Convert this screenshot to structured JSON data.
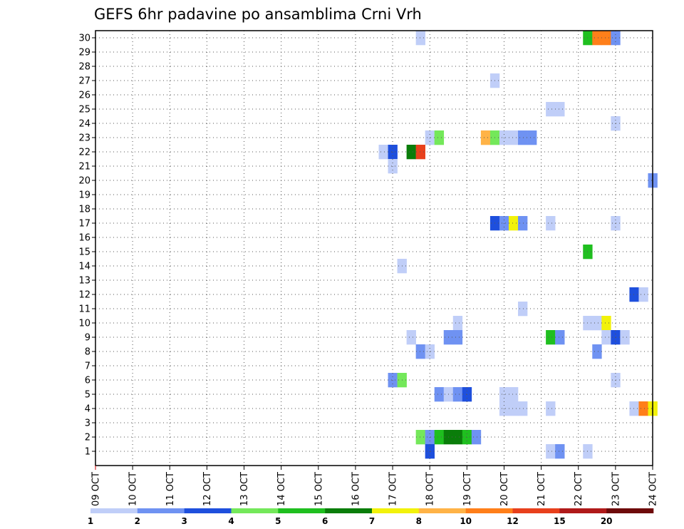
{
  "chart_data": {
    "type": "heatmap",
    "title": "GEFS 6hr padavine po ansamblima Crni Vrh",
    "x_tick_labels": [
      "09 OCT",
      "10 OCT",
      "11 OCT",
      "12 OCT",
      "13 OCT",
      "14 OCT",
      "15 OCT",
      "16 OCT",
      "17 OCT",
      "18 OCT",
      "19 OCT",
      "20 OCT",
      "21 OCT",
      "22 OCT",
      "23 OCT",
      "24 OCT"
    ],
    "y_tick_labels": [
      "1",
      "2",
      "3",
      "4",
      "5",
      "6",
      "7",
      "8",
      "9",
      "10",
      "11",
      "12",
      "13",
      "14",
      "15",
      "16",
      "17",
      "18",
      "19",
      "20",
      "21",
      "22",
      "23",
      "24",
      "25",
      "26",
      "27",
      "28",
      "29",
      "30"
    ],
    "x_range": [
      "09 OCT",
      "24 OCT"
    ],
    "y_range": [
      1,
      30
    ],
    "grid": true,
    "time_step": "6hr",
    "levels": [
      1,
      2,
      3,
      4,
      5,
      6,
      7,
      8,
      10,
      12,
      15,
      20
    ],
    "level_labels": [
      "1",
      "2",
      "3",
      "4",
      "5",
      "6",
      "7",
      "8",
      "10",
      "12",
      "15",
      "20"
    ],
    "colors": [
      "#c0cef8",
      "#6f92f2",
      "#1e4fdd",
      "#74e85a",
      "#1fbf1f",
      "#0a7d0a",
      "#f2f20a",
      "#ffb347",
      "#ff7f1a",
      "#e8401c",
      "#b01a1a",
      "#6e0a0a"
    ],
    "cells": [
      {
        "member": 30,
        "step": 35,
        "level": 0
      },
      {
        "member": 30,
        "step": 53,
        "level": 4
      },
      {
        "member": 30,
        "step": 54,
        "level": 8
      },
      {
        "member": 30,
        "step": 55,
        "level": 8
      },
      {
        "member": 30,
        "step": 56,
        "level": 1
      },
      {
        "member": 27,
        "step": 43,
        "level": 0
      },
      {
        "member": 25,
        "step": 49,
        "level": 0
      },
      {
        "member": 25,
        "step": 50,
        "level": 0
      },
      {
        "member": 24,
        "step": 56,
        "level": 0
      },
      {
        "member": 23,
        "step": 36,
        "level": 0
      },
      {
        "member": 23,
        "step": 37,
        "level": 3
      },
      {
        "member": 23,
        "step": 42,
        "level": 7
      },
      {
        "member": 23,
        "step": 43,
        "level": 3
      },
      {
        "member": 23,
        "step": 44,
        "level": 0
      },
      {
        "member": 23,
        "step": 45,
        "level": 0
      },
      {
        "member": 23,
        "step": 46,
        "level": 1
      },
      {
        "member": 23,
        "step": 47,
        "level": 1
      },
      {
        "member": 22,
        "step": 31,
        "level": 0
      },
      {
        "member": 22,
        "step": 32,
        "level": 2
      },
      {
        "member": 22,
        "step": 34,
        "level": 5
      },
      {
        "member": 22,
        "step": 35,
        "level": 9
      },
      {
        "member": 21,
        "step": 32,
        "level": 0
      },
      {
        "member": 20,
        "step": 60,
        "level": 1
      },
      {
        "member": 17,
        "step": 43,
        "level": 2
      },
      {
        "member": 17,
        "step": 44,
        "level": 1
      },
      {
        "member": 17,
        "step": 45,
        "level": 6
      },
      {
        "member": 17,
        "step": 46,
        "level": 1
      },
      {
        "member": 17,
        "step": 49,
        "level": 0
      },
      {
        "member": 17,
        "step": 56,
        "level": 0
      },
      {
        "member": 15,
        "step": 53,
        "level": 4
      },
      {
        "member": 14,
        "step": 33,
        "level": 0
      },
      {
        "member": 12,
        "step": 58,
        "level": 2
      },
      {
        "member": 12,
        "step": 59,
        "level": 0
      },
      {
        "member": 11,
        "step": 46,
        "level": 0
      },
      {
        "member": 10,
        "step": 39,
        "level": 0
      },
      {
        "member": 10,
        "step": 53,
        "level": 0
      },
      {
        "member": 10,
        "step": 54,
        "level": 0
      },
      {
        "member": 10,
        "step": 55,
        "level": 6
      },
      {
        "member": 9,
        "step": 34,
        "level": 0
      },
      {
        "member": 9,
        "step": 38,
        "level": 1
      },
      {
        "member": 9,
        "step": 39,
        "level": 1
      },
      {
        "member": 9,
        "step": 49,
        "level": 4
      },
      {
        "member": 9,
        "step": 50,
        "level": 1
      },
      {
        "member": 9,
        "step": 55,
        "level": 0
      },
      {
        "member": 9,
        "step": 56,
        "level": 2
      },
      {
        "member": 9,
        "step": 57,
        "level": 0
      },
      {
        "member": 8,
        "step": 35,
        "level": 1
      },
      {
        "member": 8,
        "step": 36,
        "level": 0
      },
      {
        "member": 8,
        "step": 54,
        "level": 1
      },
      {
        "member": 6,
        "step": 32,
        "level": 1
      },
      {
        "member": 6,
        "step": 33,
        "level": 3
      },
      {
        "member": 6,
        "step": 56,
        "level": 0
      },
      {
        "member": 5,
        "step": 37,
        "level": 1
      },
      {
        "member": 5,
        "step": 38,
        "level": 0
      },
      {
        "member": 5,
        "step": 39,
        "level": 1
      },
      {
        "member": 5,
        "step": 40,
        "level": 2
      },
      {
        "member": 5,
        "step": 44,
        "level": 0
      },
      {
        "member": 5,
        "step": 45,
        "level": 0
      },
      {
        "member": 4,
        "step": 44,
        "level": 0
      },
      {
        "member": 4,
        "step": 45,
        "level": 0
      },
      {
        "member": 4,
        "step": 46,
        "level": 0
      },
      {
        "member": 4,
        "step": 49,
        "level": 0
      },
      {
        "member": 4,
        "step": 58,
        "level": 0
      },
      {
        "member": 4,
        "step": 59,
        "level": 8
      },
      {
        "member": 4,
        "step": 60,
        "level": 6
      },
      {
        "member": 2,
        "step": 35,
        "level": 3
      },
      {
        "member": 2,
        "step": 36,
        "level": 1
      },
      {
        "member": 2,
        "step": 37,
        "level": 4
      },
      {
        "member": 2,
        "step": 38,
        "level": 5
      },
      {
        "member": 2,
        "step": 39,
        "level": 5
      },
      {
        "member": 2,
        "step": 40,
        "level": 4
      },
      {
        "member": 2,
        "step": 41,
        "level": 1
      },
      {
        "member": 1,
        "step": 36,
        "level": 2
      },
      {
        "member": 1,
        "step": 49,
        "level": 0
      },
      {
        "member": 1,
        "step": 50,
        "level": 1
      },
      {
        "member": 1,
        "step": 53,
        "level": 0
      }
    ]
  }
}
